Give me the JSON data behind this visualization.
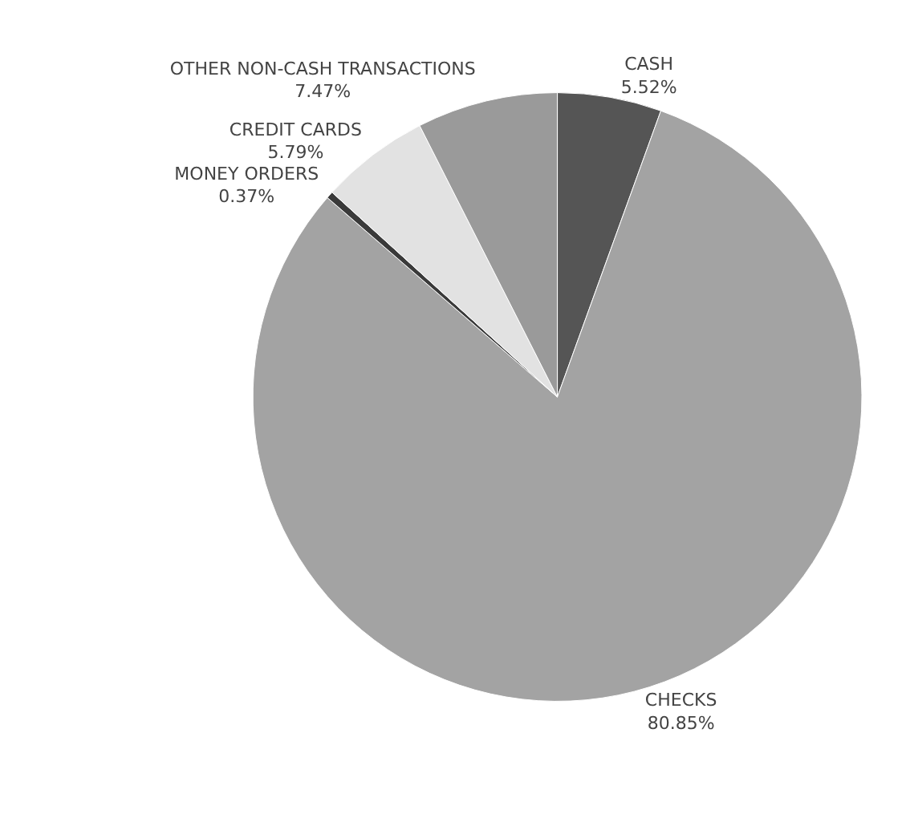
{
  "chart_data": {
    "type": "pie",
    "categories": [
      "CASH",
      "CHECKS",
      "MONEY ORDERS",
      "CREDIT CARDS",
      "OTHER NON-CASH TRANSACTIONS"
    ],
    "values": [
      5.52,
      80.85,
      0.37,
      5.79,
      7.47
    ],
    "value_labels": [
      "5.52%",
      "80.85%",
      "0.37%",
      "5.79%",
      "7.47%"
    ],
    "colors": [
      "#555555",
      "#a3a3a3",
      "#3a3a3a",
      "#e2e2e2",
      "#9a9a9a"
    ],
    "legend": false
  }
}
